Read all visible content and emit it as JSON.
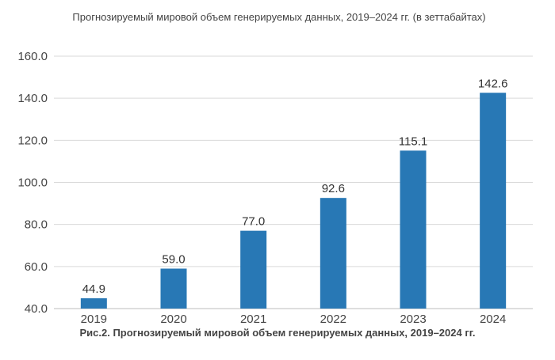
{
  "chart_data": {
    "type": "bar",
    "title": "Прогнозируемый мировой объем генерируемых данных, 2019–2024 гг. (в зеттабайтах)",
    "categories": [
      "2019",
      "2020",
      "2021",
      "2022",
      "2023",
      "2024"
    ],
    "values": [
      44.9,
      59.0,
      77.0,
      92.6,
      115.1,
      142.6
    ],
    "value_labels": [
      "44.9",
      "59.0",
      "77.0",
      "92.6",
      "115.1",
      "142.6"
    ],
    "yticks": [
      "40.0",
      "60.0",
      "80.0",
      "100.0",
      "120.0",
      "140.0",
      "160.0"
    ],
    "ylim": [
      40,
      160
    ],
    "grid": true,
    "legend": "none",
    "bar_color": "#2878b5",
    "xlabel": "",
    "ylabel": ""
  },
  "caption": "Рис.2. Прогнозируемый мировой объем генерируемых данных, 2019–2024 гг."
}
